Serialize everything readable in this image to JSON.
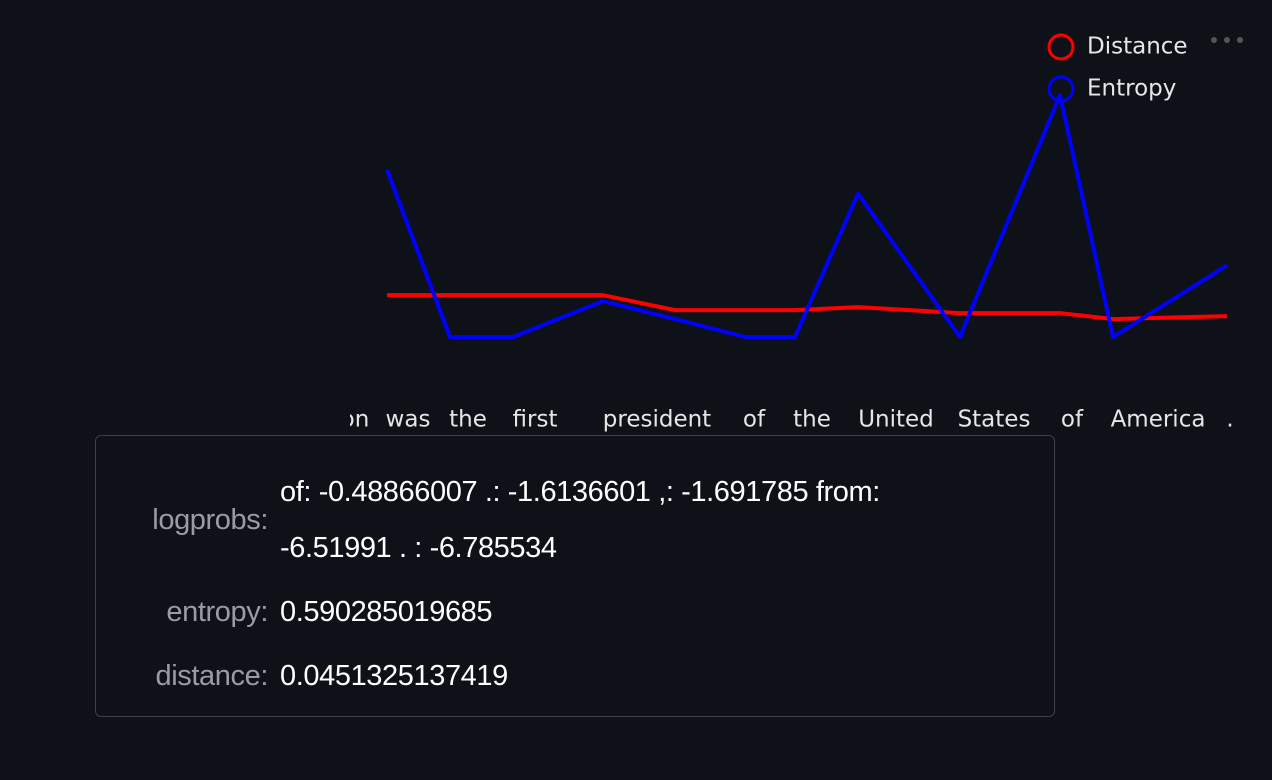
{
  "chart_data": {
    "type": "line",
    "categories": [
      "on",
      "was",
      "the",
      "first",
      "president",
      "of",
      "the",
      "United",
      "States",
      "of",
      "America",
      "."
    ],
    "series": [
      {
        "name": "Distance",
        "color": "#ff0000",
        "values": [
          0.18,
          0.18,
          0.18,
          0.18,
          0.13,
          0.13,
          0.13,
          0.14,
          0.12,
          0.12,
          0.1,
          0.11
        ]
      },
      {
        "name": "Entropy",
        "color": "#0000ff",
        "values": [
          0.6,
          0.04,
          0.04,
          0.16,
          0.1,
          0.04,
          0.04,
          0.52,
          0.04,
          0.85,
          0.04,
          0.28
        ]
      }
    ]
  },
  "tooltip": {
    "rows": [
      {
        "label": "logprobs:",
        "value": "of: -0.48866007 .: -1.6136601 ,: -1.691785 from: -6.51991 . : -6.785534"
      },
      {
        "label": "entropy:",
        "value": "0.590285019685"
      },
      {
        "label": "distance:",
        "value": "0.0451325137419"
      }
    ]
  }
}
